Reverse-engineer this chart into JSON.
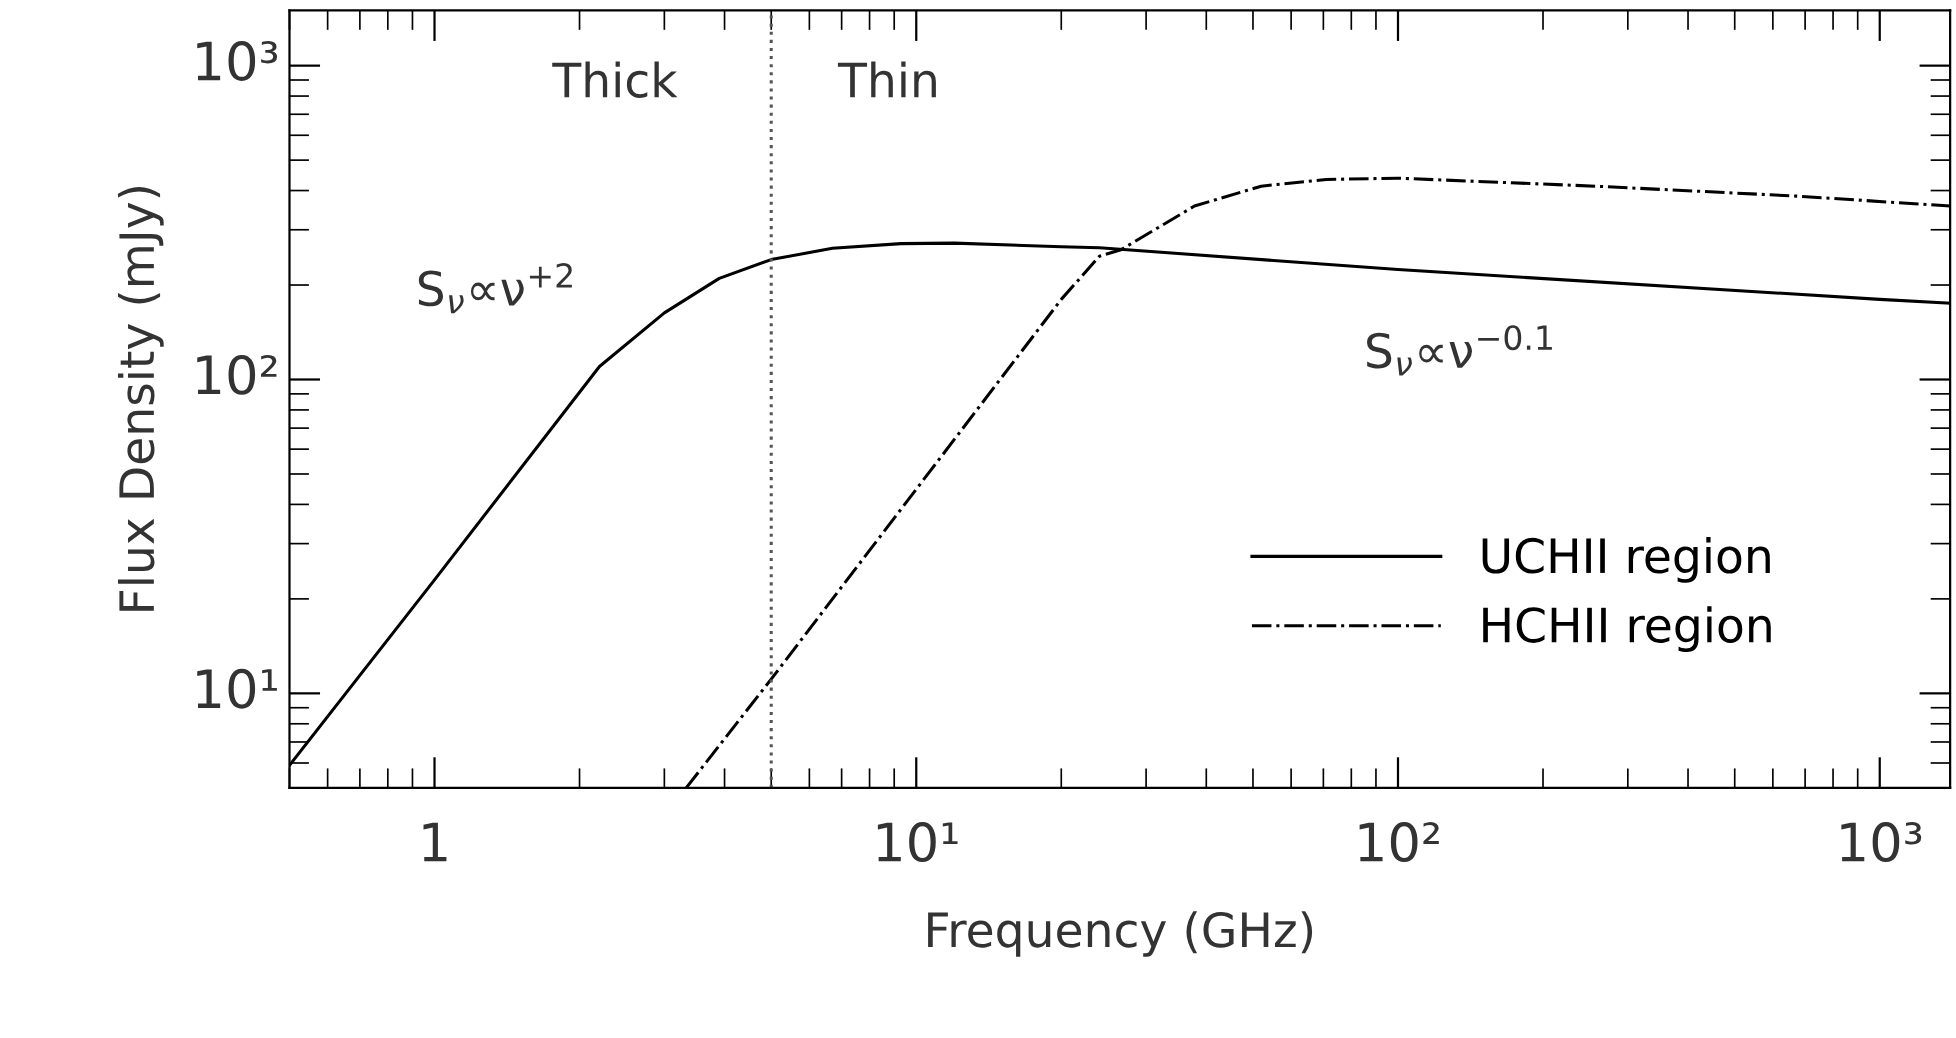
{
  "chart_data": {
    "type": "line",
    "xlabel": "Frequency (GHz)",
    "ylabel": "Flux Density (mJy)",
    "log": "xy",
    "xlim": [
      0.5,
      1400
    ],
    "ylim": [
      5,
      1500
    ],
    "xticks": [
      1,
      {
        "value": 10,
        "label": "10¹"
      },
      {
        "value": 100,
        "label": "10²"
      },
      {
        "value": 1000,
        "label": "10³"
      }
    ],
    "yticks": [
      {
        "value": 10,
        "label": "10¹"
      },
      {
        "value": 100,
        "label": "10²"
      },
      {
        "value": 1000,
        "label": "10³"
      }
    ],
    "grid": false,
    "legend": "bottom right",
    "series": [
      {
        "name": "UCHII region",
        "color": "#000000",
        "line_style": "solid",
        "x": [
          0.5,
          1,
          2.2,
          3,
          3.9,
          5,
          6.7,
          9.3,
          12,
          20,
          24,
          100,
          1000,
          1400
        ],
        "values": [
          5.9,
          23,
          110,
          163,
          210,
          241,
          262,
          271,
          272,
          265,
          263,
          224,
          180,
          175
        ]
      },
      {
        "name": "HCHII region",
        "color": "#000000",
        "line_style": "dashdot",
        "x": [
          3.33,
          5,
          20,
          24,
          26.6,
          37.8,
          52,
          71,
          100,
          257,
          673,
          1400
        ],
        "values": [
          5,
          11.1,
          180,
          247,
          259,
          357,
          413,
          434,
          438,
          413,
          384,
          357
        ]
      }
    ],
    "ref_lines": [
      {
        "axis": "x",
        "value": 5,
        "label": null,
        "color": "#555555",
        "line_style": "dotted"
      }
    ],
    "annotations": [
      "Thick",
      "Thin",
      "S$_{ν}$∝ν$^{+2}$",
      "S$_{ν}$∝ν$^{−0.1}$"
    ]
  }
}
